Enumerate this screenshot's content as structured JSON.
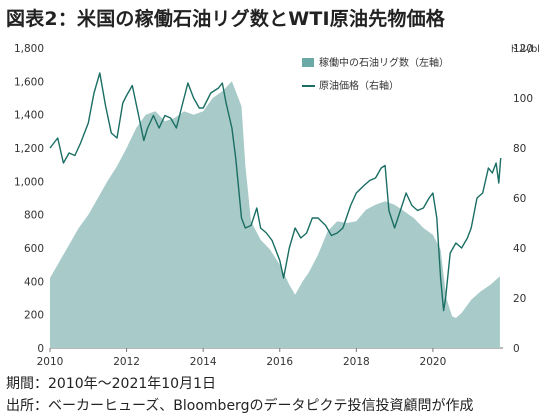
{
  "title": "図表2：米国の稼働石油リグ数とWTI原油先物価格",
  "footer": {
    "period": "期間：2010年～2021年10月1日",
    "source": "出所：ベーカーヒューズ、Bloombergのデータピクテ投信投資顧問が作成"
  },
  "colors": {
    "area": "#a8cbc9",
    "line": "#1a6e63",
    "legend_area": "#6aa9a5"
  },
  "chart_data": {
    "type": "line",
    "title": "米国の稼働石油リグ数とWTI原油先物価格",
    "x_range": [
      2010,
      2021.83
    ],
    "x_ticks": [
      2010,
      2012,
      2014,
      2016,
      2018,
      2020
    ],
    "x_tick_labels": [
      "2010",
      "2012",
      "2014",
      "2016",
      "2018",
      "2020"
    ],
    "y_left": {
      "range": [
        0,
        1800
      ],
      "ticks": [
        0,
        200,
        400,
        600,
        800,
        1000,
        1200,
        1400,
        1600,
        1800
      ],
      "tick_labels": [
        "0",
        "200",
        "400",
        "600",
        "800",
        "1,000",
        "1,200",
        "1,400",
        "1,600",
        "1,800"
      ]
    },
    "y_right": {
      "range": [
        0,
        120
      ],
      "ticks": [
        0,
        20,
        40,
        60,
        80,
        100,
        120
      ],
      "tick_labels": [
        "0",
        "20",
        "40",
        "60",
        "80",
        "100",
        "120"
      ],
      "unit": "ドル/bl"
    },
    "legend_position": "top-right",
    "series": [
      {
        "name": "稼働中の石油リグ数（左軸）",
        "type": "area",
        "axis": "left",
        "x": [
          2010.0,
          2010.25,
          2010.5,
          2010.75,
          2011.0,
          2011.25,
          2011.5,
          2011.75,
          2012.0,
          2012.25,
          2012.5,
          2012.75,
          2013.0,
          2013.25,
          2013.5,
          2013.75,
          2014.0,
          2014.25,
          2014.5,
          2014.75,
          2015.0,
          2015.1,
          2015.25,
          2015.5,
          2015.75,
          2016.0,
          2016.25,
          2016.4,
          2016.6,
          2016.75,
          2017.0,
          2017.25,
          2017.5,
          2017.75,
          2018.0,
          2018.25,
          2018.5,
          2018.75,
          2019.0,
          2019.25,
          2019.5,
          2019.75,
          2020.0,
          2020.2,
          2020.35,
          2020.5,
          2020.6,
          2020.75,
          2021.0,
          2021.25,
          2021.5,
          2021.75
        ],
        "values": [
          420,
          520,
          620,
          720,
          800,
          900,
          1000,
          1090,
          1200,
          1320,
          1400,
          1420,
          1360,
          1380,
          1420,
          1400,
          1420,
          1500,
          1540,
          1600,
          1450,
          1100,
          760,
          650,
          590,
          500,
          380,
          320,
          400,
          450,
          560,
          700,
          760,
          750,
          760,
          830,
          860,
          880,
          860,
          820,
          780,
          720,
          680,
          590,
          300,
          190,
          180,
          210,
          290,
          340,
          380,
          430
        ]
      },
      {
        "name": "原油価格（右軸）",
        "type": "line",
        "axis": "right",
        "x": [
          2010.0,
          2010.2,
          2010.35,
          2010.5,
          2010.65,
          2010.8,
          2011.0,
          2011.15,
          2011.3,
          2011.45,
          2011.6,
          2011.75,
          2011.9,
          2012.0,
          2012.15,
          2012.3,
          2012.45,
          2012.55,
          2012.7,
          2012.85,
          2013.0,
          2013.15,
          2013.3,
          2013.45,
          2013.6,
          2013.75,
          2013.9,
          2014.0,
          2014.2,
          2014.4,
          2014.5,
          2014.6,
          2014.75,
          2014.85,
          2015.0,
          2015.1,
          2015.25,
          2015.4,
          2015.5,
          2015.65,
          2015.8,
          2016.0,
          2016.1,
          2016.25,
          2016.4,
          2016.55,
          2016.7,
          2016.85,
          2017.0,
          2017.2,
          2017.35,
          2017.5,
          2017.65,
          2017.85,
          2018.0,
          2018.2,
          2018.35,
          2018.5,
          2018.65,
          2018.75,
          2018.85,
          2019.0,
          2019.15,
          2019.3,
          2019.45,
          2019.6,
          2019.75,
          2019.9,
          2020.0,
          2020.1,
          2020.2,
          2020.28,
          2020.33,
          2020.45,
          2020.6,
          2020.75,
          2020.9,
          2021.0,
          2021.15,
          2021.3,
          2021.45,
          2021.55,
          2021.65,
          2021.72,
          2021.77
        ],
        "values": [
          80,
          84,
          74,
          78,
          77,
          82,
          90,
          102,
          110,
          97,
          86,
          84,
          98,
          101,
          105,
          94,
          83,
          88,
          93,
          88,
          93,
          92,
          88,
          97,
          106,
          100,
          96,
          96,
          102,
          104,
          106,
          98,
          88,
          76,
          52,
          48,
          49,
          56,
          48,
          46,
          43,
          35,
          28,
          40,
          48,
          44,
          46,
          52,
          52,
          49,
          45,
          46,
          48,
          57,
          62,
          65,
          67,
          68,
          72,
          73,
          55,
          48,
          55,
          62,
          57,
          55,
          56,
          60,
          62,
          52,
          28,
          15,
          20,
          38,
          42,
          40,
          44,
          48,
          60,
          62,
          72,
          70,
          74,
          66,
          76
        ]
      }
    ]
  }
}
